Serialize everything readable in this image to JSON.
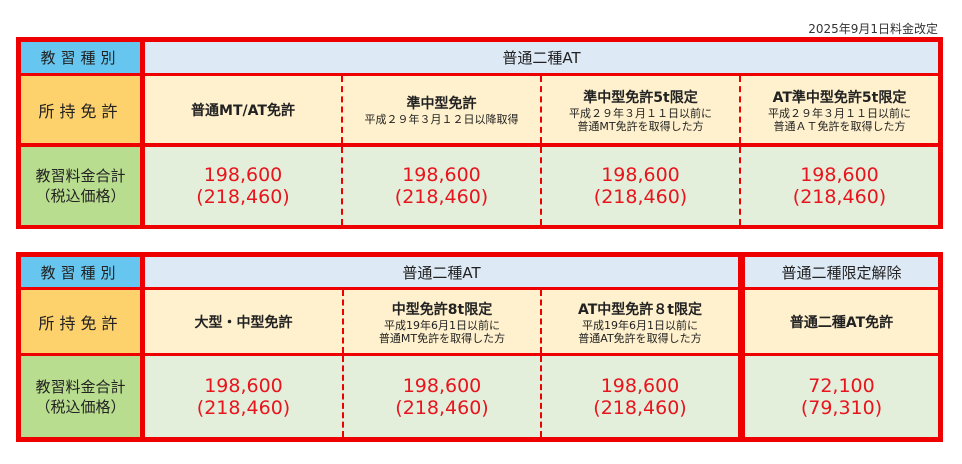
{
  "revision_note": "2025年9月1日料金改定",
  "labels": {
    "course": "教習種別",
    "license": "所持免許",
    "price": "教習料金合計",
    "price_sub": "（税込価格）"
  },
  "table1": {
    "course": "普通二種AT",
    "columns": [
      {
        "license": "普通MT/AT免許",
        "sub1": "",
        "sub2": "",
        "price": "198,600",
        "price_tax": "(218,460)"
      },
      {
        "license": "準中型免許",
        "sub1": "平成２９年３月１２日以降取得",
        "sub2": "",
        "price": "198,600",
        "price_tax": "(218,460)"
      },
      {
        "license": "準中型免許5t限定",
        "sub1": "平成２９年３月１１日以前に",
        "sub2": "普通MT免許を取得した方",
        "price": "198,600",
        "price_tax": "(218,460)"
      },
      {
        "license": "AT準中型免許5t限定",
        "sub1": "平成２９年３月１１日以前に",
        "sub2": "普通ＡＴ免許を取得した方",
        "price": "198,600",
        "price_tax": "(218,460)"
      }
    ]
  },
  "table2": {
    "course": "普通二種AT",
    "course2": "普通二種限定解除",
    "columns": [
      {
        "license": "大型・中型免許",
        "sub1": "",
        "sub2": "",
        "price": "198,600",
        "price_tax": "(218,460)"
      },
      {
        "license": "中型免許8t限定",
        "sub1": "平成19年6月1日以前に",
        "sub2": "普通MT免許を取得した方",
        "price": "198,600",
        "price_tax": "(218,460)"
      },
      {
        "license": "AT中型免許８t限定",
        "sub1": "平成19年6月1日以前に",
        "sub2": "普通AT免許を取得した方",
        "price": "198,600",
        "price_tax": "(218,460)"
      },
      {
        "license": "普通二種AT免許",
        "sub1": "",
        "sub2": "",
        "price": "72,100",
        "price_tax": "(79,310)"
      }
    ]
  }
}
